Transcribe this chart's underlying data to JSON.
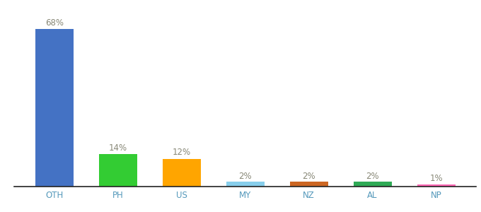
{
  "categories": [
    "OTH",
    "PH",
    "US",
    "MY",
    "NZ",
    "AL",
    "NP"
  ],
  "values": [
    68,
    14,
    12,
    2,
    2,
    2,
    1
  ],
  "labels": [
    "68%",
    "14%",
    "12%",
    "2%",
    "2%",
    "2%",
    "1%"
  ],
  "bar_colors": [
    "#4472C4",
    "#33CC33",
    "#FFA500",
    "#87CEEB",
    "#CC6622",
    "#2EAA55",
    "#FF69B4"
  ],
  "background_color": "#ffffff",
  "ylim": [
    0,
    76
  ],
  "label_fontsize": 8.5,
  "tick_fontsize": 8.5,
  "tick_color": "#5599BB",
  "label_color": "#888877",
  "bar_width": 0.6
}
